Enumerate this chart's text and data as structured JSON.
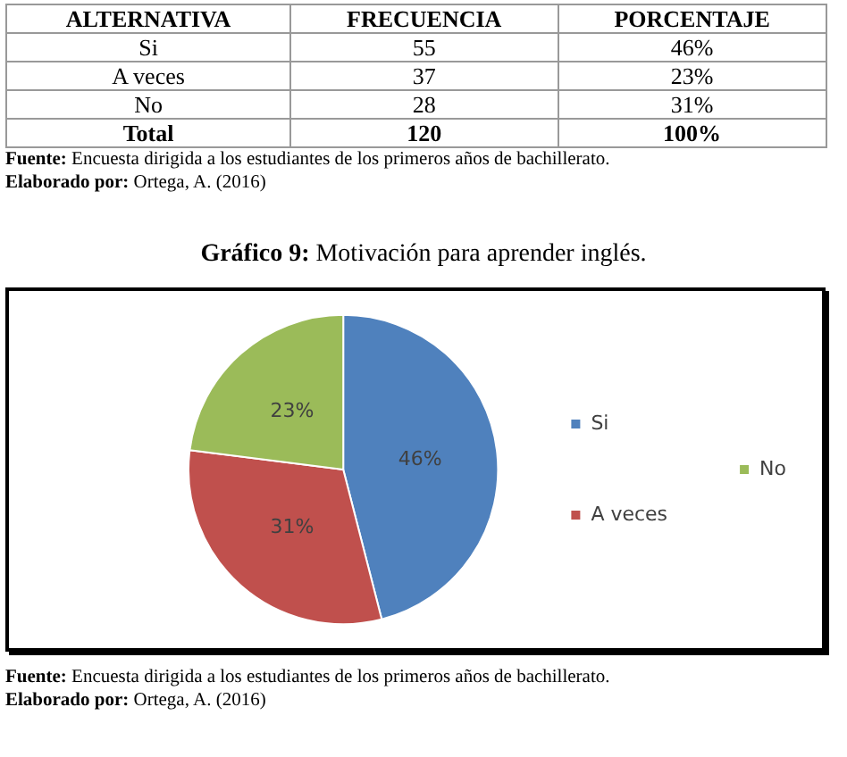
{
  "chart_data": {
    "type": "pie",
    "title": "Gráfico 9: Motivación para aprender inglés.",
    "categories": [
      "Si",
      "A veces",
      "No"
    ],
    "values": [
      46,
      31,
      23
    ],
    "value_labels": [
      "46%",
      "31%",
      "23%"
    ],
    "colors": [
      "#4f81bd",
      "#c0504d",
      "#9bbb59"
    ],
    "legend": "right",
    "annotations": [
      "ALTERNATIVA",
      "FRECUENCIA",
      "PORCENTAJE",
      "Si",
      "55",
      "46%",
      "A veces",
      "37",
      "23%",
      "No",
      "28",
      "31%",
      "Total",
      "120",
      "100%",
      "Fuente: Encuesta dirigida a los estudiantes de los primeros años de bachillerato.",
      "Elaborado por: Ortega, A. (2016)",
      "Fuente: Encuesta dirigida a los estudiantes de los primeros años de bachillerato.",
      "Elaborado por: Ortega, A. (2016)"
    ]
  }
}
